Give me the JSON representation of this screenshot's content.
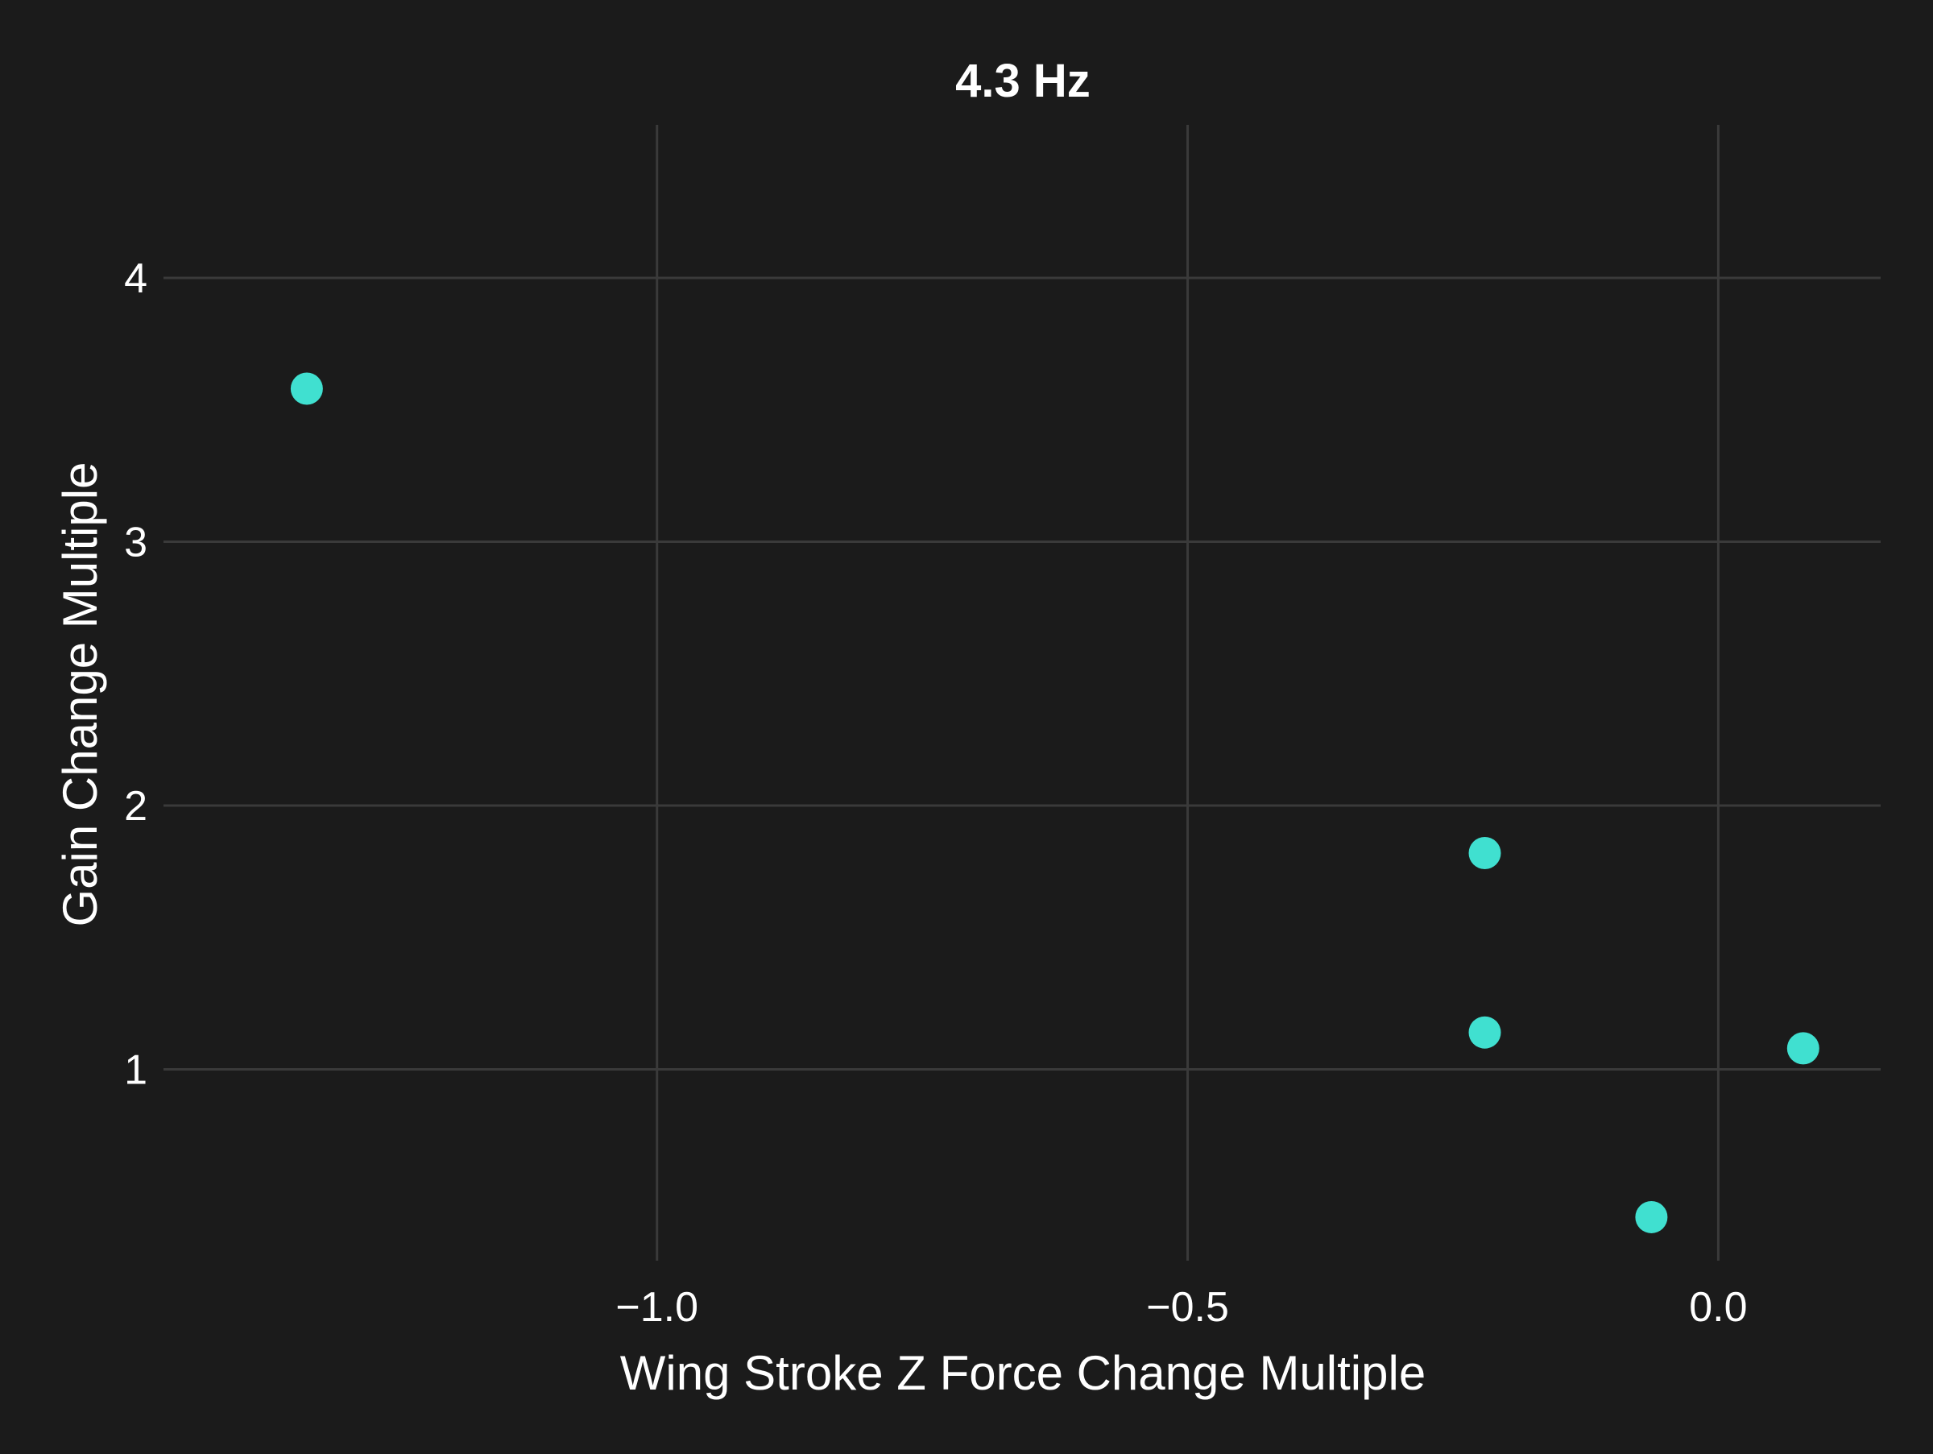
{
  "colors": {
    "background": "#1b1b1b",
    "grid": "#3a3a3a",
    "marker": "#40e0d0",
    "text": "#ffffff"
  },
  "chart_data": {
    "type": "scatter",
    "title": "4.3 Hz",
    "xlabel": "Wing Stroke Z Force Change Multiple",
    "ylabel": "Gain Change Multiple",
    "xlim": [
      -1.465,
      0.153
    ],
    "ylim": [
      0.275,
      4.58
    ],
    "xticks": [
      -1.0,
      -0.5,
      0.0
    ],
    "xtick_labels": [
      "−1.0",
      "−0.5",
      "0.0"
    ],
    "yticks": [
      1,
      2,
      3,
      4
    ],
    "ytick_labels": [
      "1",
      "2",
      "3",
      "4"
    ],
    "grid": true,
    "series": [
      {
        "points": [
          {
            "x": -1.33,
            "y": 3.58
          },
          {
            "x": -0.22,
            "y": 1.82
          },
          {
            "x": -0.22,
            "y": 1.14
          },
          {
            "x": 0.08,
            "y": 1.08
          },
          {
            "x": -0.063,
            "y": 0.44
          }
        ]
      }
    ]
  }
}
